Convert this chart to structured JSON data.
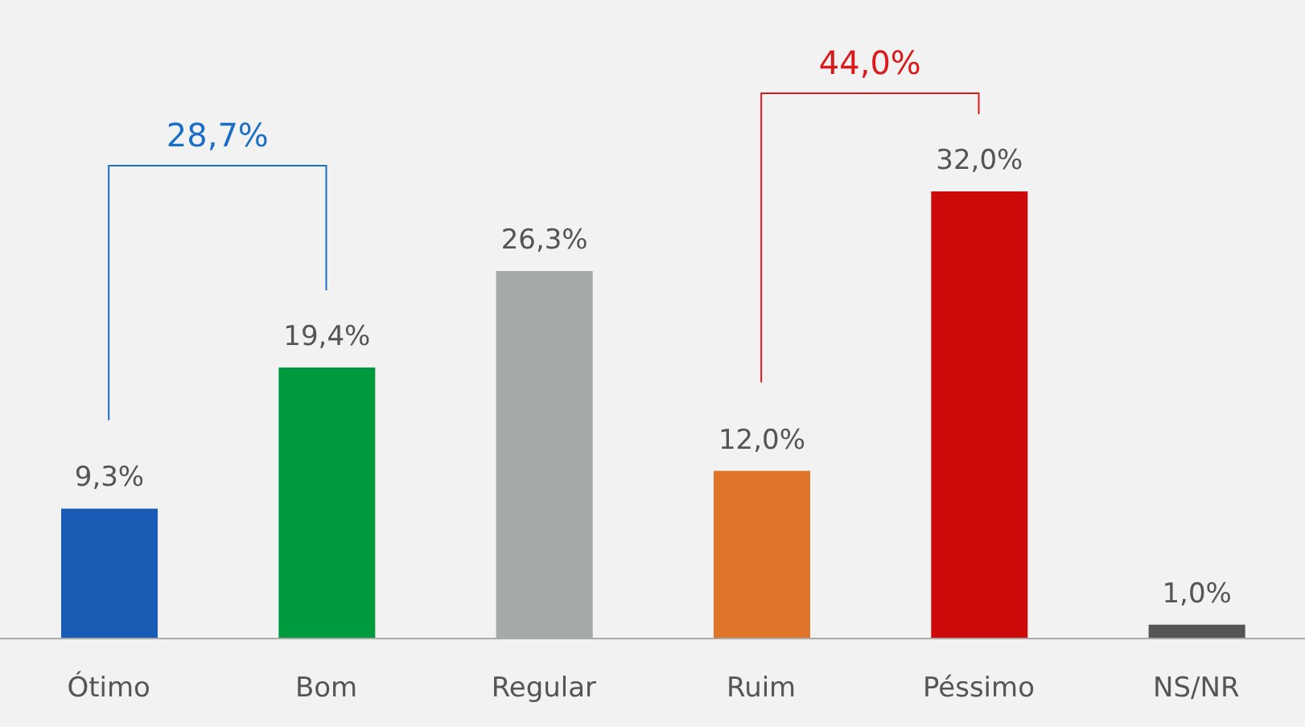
{
  "chart_data": {
    "type": "bar",
    "categories": [
      "Ótimo",
      "Bom",
      "Regular",
      "Ruim",
      "Péssimo",
      "NS/NR"
    ],
    "values": [
      9.3,
      19.4,
      26.3,
      12.0,
      32.0,
      1.0
    ],
    "value_labels": [
      "9,3%",
      "19,4%",
      "26,3%",
      "12,0%",
      "32,0%",
      "1,0%"
    ],
    "colors": [
      "#1a5bb5",
      "#009a3e",
      "#a3aaa8",
      "#e07428",
      "#cc0a0a",
      "#555555"
    ],
    "annotations": [
      "28,7%",
      "44,0%"
    ]
  }
}
